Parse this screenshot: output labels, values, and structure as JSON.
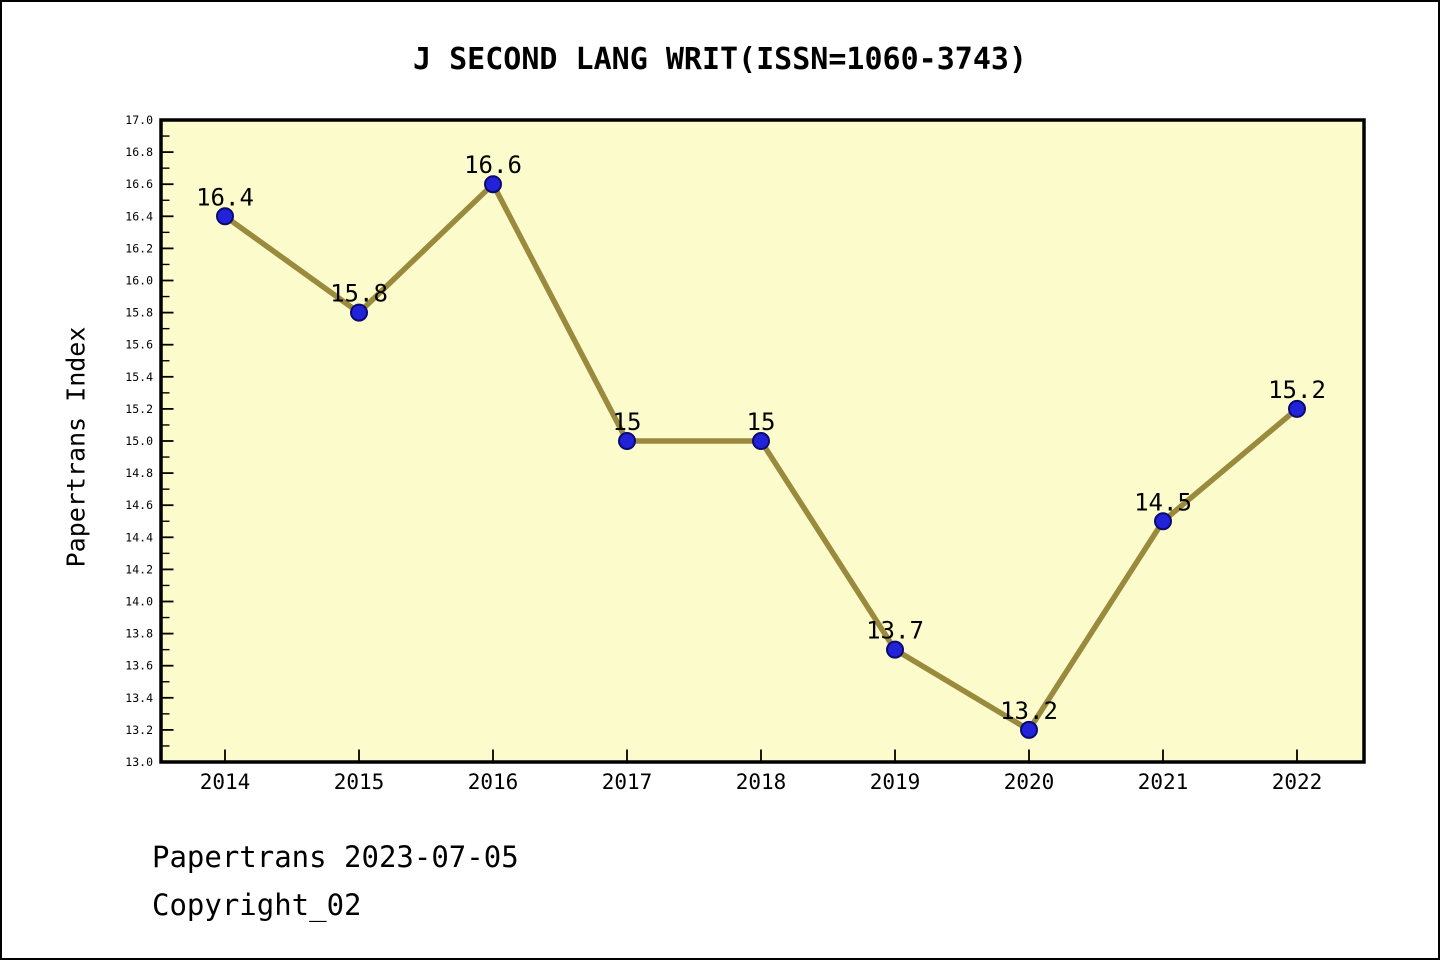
{
  "title": "J SECOND LANG WRIT(ISSN=1060-3743)",
  "footer": {
    "line1": "Papertrans 2023-07-05",
    "line2": "Copyright_02"
  },
  "chart_data": {
    "type": "line",
    "title": "J SECOND LANG WRIT(ISSN=1060-3743)",
    "xlabel": "",
    "ylabel": "Papertrans Index",
    "x": [
      2014,
      2015,
      2016,
      2017,
      2018,
      2019,
      2020,
      2021,
      2022
    ],
    "values": [
      16.4,
      15.8,
      16.6,
      15,
      15,
      13.7,
      13.2,
      14.5,
      15.2
    ],
    "point_labels": [
      "16.4",
      "15.8",
      "16.6",
      "15",
      "15",
      "13.7",
      "13.2",
      "14.5",
      "15.2"
    ],
    "ylim": [
      13.0,
      17.0
    ],
    "ytick_major_step": 0.2,
    "ytick_minor_step": 0.1,
    "grid": false,
    "legend": null,
    "colors": {
      "line": "#9a8a3d",
      "marker_fill": "#2222d8",
      "marker_edge": "#0a0a70",
      "plot_bg": "#fcfbcb",
      "axis": "#000000",
      "text": "#000000",
      "page_bg": "#ffffff"
    }
  }
}
